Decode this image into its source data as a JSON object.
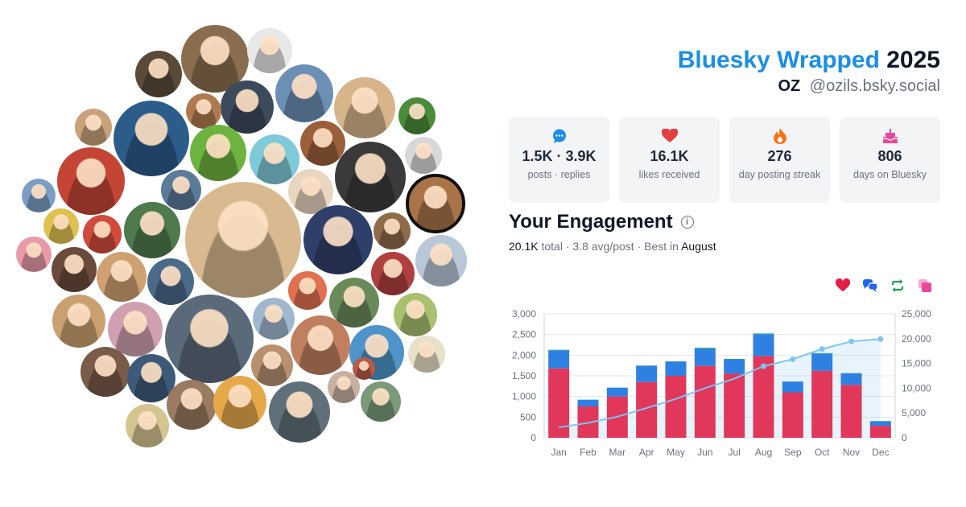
{
  "header": {
    "brand": "Bluesky Wrapped",
    "year": "2025",
    "display_name": "OZ",
    "handle": "@ozils.bsky.social"
  },
  "stats": [
    {
      "icon": "speech-bubble-icon",
      "value": "1.5K · 3.9K",
      "label": "posts · replies",
      "color": "#1a8fe3"
    },
    {
      "icon": "heart-icon",
      "value": "16.1K",
      "label": "likes received",
      "color": "#e53e3e"
    },
    {
      "icon": "flame-icon",
      "value": "276",
      "label": "day posting streak",
      "color": "#f97316"
    },
    {
      "icon": "cake-icon",
      "value": "806",
      "label": "days on Bluesky",
      "color": "#ec4899"
    }
  ],
  "engagement": {
    "title": "Your Engagement",
    "total": "20.1K",
    "total_word": "total",
    "avg": "3.8 avg/post",
    "best_prefix": "Best in",
    "best_month": "August"
  },
  "legend": [
    {
      "name": "likes-legend-icon",
      "icon": "heart-icon",
      "color": "#e11d48"
    },
    {
      "name": "replies-legend-icon",
      "icon": "reply-bubbles-icon",
      "color": "#2563eb"
    },
    {
      "name": "reposts-legend-icon",
      "icon": "repost-icon",
      "color": "#16a34a"
    },
    {
      "name": "quotes-legend-icon",
      "icon": "quote-icon",
      "color": "#ec4899"
    }
  ],
  "chart_data": {
    "type": "bar",
    "stacked": true,
    "categories": [
      "Jan",
      "Feb",
      "Mar",
      "Apr",
      "May",
      "Jun",
      "Jul",
      "Aug",
      "Sep",
      "Oct",
      "Nov",
      "Dec"
    ],
    "series": [
      {
        "values": [
          1680,
          760,
          1000,
          1350,
          1500,
          1740,
          1550,
          1980,
          1100,
          1620,
          1280,
          290
        ],
        "color": "#e0375a"
      },
      {
        "values": [
          440,
          160,
          210,
          390,
          340,
          420,
          350,
          530,
          260,
          420,
          280,
          110
        ],
        "color": "#2f80e3"
      },
      {
        "values": [
          10,
          5,
          5,
          10,
          10,
          20,
          10,
          15,
          5,
          10,
          5,
          5
        ],
        "color": "#22a860"
      }
    ],
    "cumulative": {
      "values": [
        2100,
        3000,
        4250,
        6000,
        7850,
        10020,
        11920,
        14450,
        15850,
        17900,
        19450,
        19900
      ],
      "color": "#7ec4f0"
    },
    "ylim": [
      0,
      3000
    ],
    "y_ticks": [
      "0",
      "500",
      "1,000",
      "1,500",
      "2,000",
      "2,500",
      "3,000"
    ],
    "y2lim": [
      0,
      25000
    ],
    "y2_ticks": [
      "0",
      "5,000",
      "10,000",
      "15,000",
      "20,000",
      "25,000"
    ],
    "grid": true
  },
  "avatar_colors": [
    "#8a6d4e",
    "#e8e8e8",
    "#5a4a3a",
    "#6b8fb5",
    "#3c4a5c",
    "#d7b48a",
    "#4a8c3a",
    "#c9a27c",
    "#2b5c8a",
    "#b07a50",
    "#6db33f",
    "#7fcad8",
    "#9b5f3a",
    "#d8d8d8",
    "#c44536",
    "#3a3a3a",
    "#e9d6c0",
    "#5c7a99",
    "#a87448",
    "#7c9ec4",
    "#e0c050",
    "#d14b3c",
    "#4e7a4e",
    "#d9b98f",
    "#2f3f6a",
    "#8e6b4a",
    "#b8c8d8",
    "#e89aa8",
    "#6a4a3a",
    "#cfa070",
    "#4a6a8a",
    "#b04040",
    "#9fb8d0",
    "#e07050",
    "#6a8a5a",
    "#caa070",
    "#d0a0b0",
    "#5a6a7a",
    "#c08060",
    "#4e94c8",
    "#a8c070",
    "#e8e0c8",
    "#7a5a4a",
    "#3e5a7a",
    "#b89070",
    "#9a7a60",
    "#e6a94a",
    "#60707a",
    "#c8b0a0",
    "#7a9a7a",
    "#d4c490",
    "#b85a48"
  ]
}
